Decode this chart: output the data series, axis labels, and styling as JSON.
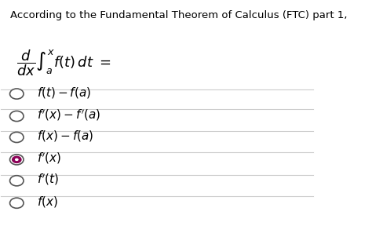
{
  "title_text": "According to the Fundamental Theorem of Calculus (FTC) part 1,",
  "integral_formula": "$\\dfrac{d}{dx} \\int_a^{x} f(t)\\, dt \\ =$",
  "options": [
    {
      "label": "$f(t) - f(a)$",
      "selected": false
    },
    {
      "label": "$f'(x) - f'(a)$",
      "selected": false
    },
    {
      "label": "$f(x) - f(a)$",
      "selected": false
    },
    {
      "label": "$f'(x)$",
      "selected": true
    },
    {
      "label": "$f'(t)$",
      "selected": false
    },
    {
      "label": "$f(x)$",
      "selected": false
    }
  ],
  "bg_color": "#ffffff",
  "text_color": "#000000",
  "title_fontsize": 9.5,
  "formula_fontsize": 13,
  "option_fontsize": 11,
  "radio_unselected_color": "#ffffff",
  "radio_selected_color": "#8B0057",
  "radio_border_color": "#555555",
  "line_color": "#cccccc"
}
